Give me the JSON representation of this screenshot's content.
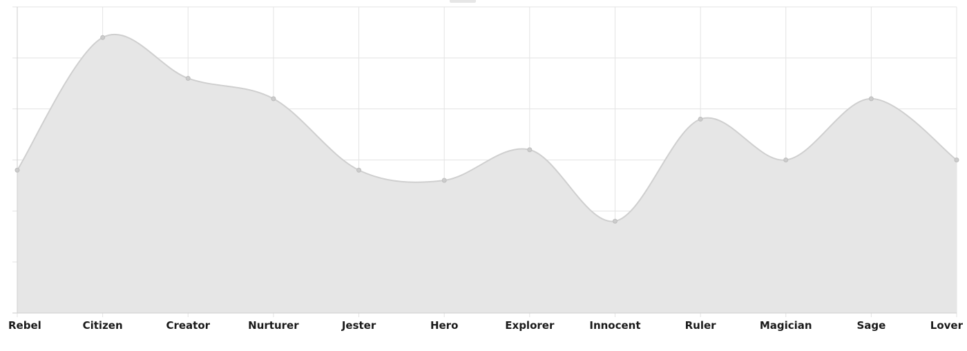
{
  "chart_data": {
    "type": "area",
    "categories": [
      "Rebel",
      "Citizen",
      "Creator",
      "Nurturer",
      "Jester",
      "Hero",
      "Explorer",
      "Innocent",
      "Ruler",
      "Magician",
      "Sage",
      "Lover"
    ],
    "values": [
      2.8,
      5.4,
      4.6,
      4.2,
      2.8,
      2.6,
      3.2,
      1.8,
      3.8,
      3.0,
      4.2,
      3.0
    ],
    "ylim": [
      0,
      6
    ],
    "grid": true,
    "colors": {
      "fill": "#e6e6e6",
      "line": "#cfcfcf",
      "point": "#cccccc"
    }
  }
}
